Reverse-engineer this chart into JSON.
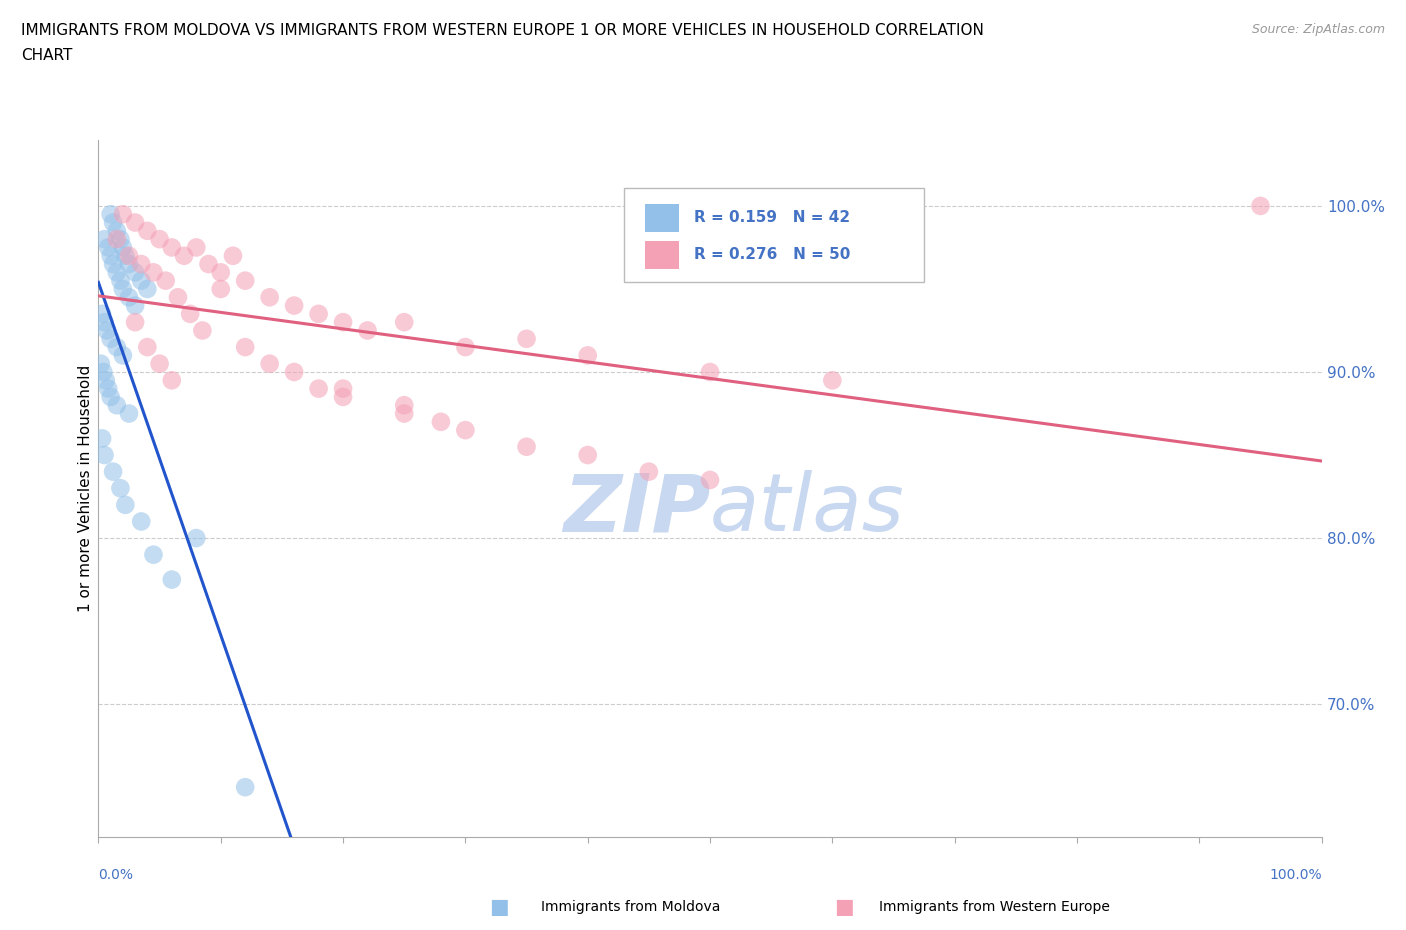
{
  "title_line1": "IMMIGRANTS FROM MOLDOVA VS IMMIGRANTS FROM WESTERN EUROPE 1 OR MORE VEHICLES IN HOUSEHOLD CORRELATION",
  "title_line2": "CHART",
  "source": "Source: ZipAtlas.com",
  "ylabel": "1 or more Vehicles in Household",
  "ytick_values": [
    70.0,
    80.0,
    90.0,
    100.0
  ],
  "xlim": [
    0.0,
    100.0
  ],
  "ylim": [
    62.0,
    104.0
  ],
  "blue_color": "#92c0e8",
  "pink_color": "#f4a0b5",
  "trendline_blue": "#2255cc",
  "trendline_pink": "#e06080",
  "watermark_zip": "ZIP",
  "watermark_atlas": "atlas",
  "watermark_color": "#c8d8f0",
  "gridline_color": "#cccccc",
  "axis_color": "#aaaaaa",
  "R_moldova": 0.159,
  "N_moldova": 42,
  "R_western": 0.276,
  "N_western": 50,
  "legend_color": "#4472c4",
  "bottom_label_left": "Immigrants from Moldova",
  "bottom_label_right": "Immigrants from Western Europe",
  "moldova_x": [
    1.0,
    1.2,
    1.5,
    1.8,
    2.0,
    2.2,
    2.5,
    3.0,
    3.5,
    4.0,
    0.5,
    0.8,
    1.0,
    1.2,
    1.5,
    1.8,
    2.0,
    2.5,
    3.0,
    0.3,
    0.5,
    0.7,
    1.0,
    1.5,
    2.0,
    0.2,
    0.4,
    0.6,
    0.8,
    1.0,
    1.5,
    2.5,
    0.3,
    0.5,
    1.2,
    1.8,
    2.2,
    3.5,
    4.5,
    6.0,
    8.0,
    12.0
  ],
  "moldova_y": [
    99.5,
    99.0,
    98.5,
    98.0,
    97.5,
    97.0,
    96.5,
    96.0,
    95.5,
    95.0,
    98.0,
    97.5,
    97.0,
    96.5,
    96.0,
    95.5,
    95.0,
    94.5,
    94.0,
    93.5,
    93.0,
    92.5,
    92.0,
    91.5,
    91.0,
    90.5,
    90.0,
    89.5,
    89.0,
    88.5,
    88.0,
    87.5,
    86.0,
    85.0,
    84.0,
    83.0,
    82.0,
    81.0,
    79.0,
    77.5,
    80.0,
    65.0
  ],
  "western_x": [
    2.0,
    3.0,
    4.0,
    5.0,
    6.0,
    7.0,
    8.0,
    9.0,
    10.0,
    11.0,
    12.0,
    14.0,
    16.0,
    18.0,
    20.0,
    22.0,
    25.0,
    30.0,
    35.0,
    40.0,
    50.0,
    60.0,
    95.0,
    1.5,
    2.5,
    3.5,
    4.5,
    5.5,
    6.5,
    7.5,
    8.5,
    10.0,
    12.0,
    14.0,
    16.0,
    18.0,
    20.0,
    25.0,
    28.0,
    30.0,
    35.0,
    40.0,
    45.0,
    50.0,
    4.0,
    5.0,
    6.0,
    3.0,
    25.0,
    20.0
  ],
  "western_y": [
    99.5,
    99.0,
    98.5,
    98.0,
    97.5,
    97.0,
    97.5,
    96.5,
    96.0,
    97.0,
    95.5,
    94.5,
    94.0,
    93.5,
    93.0,
    92.5,
    93.0,
    91.5,
    92.0,
    91.0,
    90.0,
    89.5,
    100.0,
    98.0,
    97.0,
    96.5,
    96.0,
    95.5,
    94.5,
    93.5,
    92.5,
    95.0,
    91.5,
    90.5,
    90.0,
    89.0,
    88.5,
    88.0,
    87.0,
    86.5,
    85.5,
    85.0,
    84.0,
    83.5,
    91.5,
    90.5,
    89.5,
    93.0,
    87.5,
    89.0
  ]
}
